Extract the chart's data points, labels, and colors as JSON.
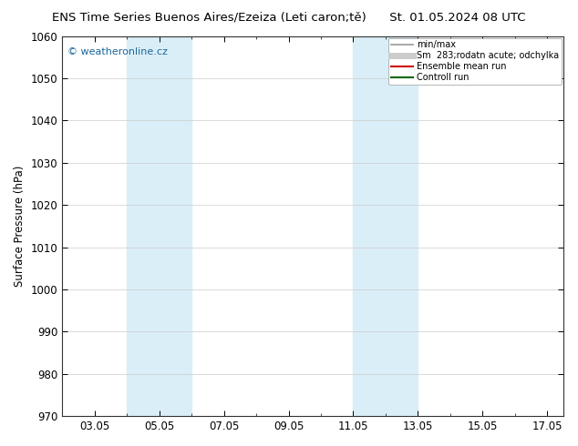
{
  "title_left": "ENS Time Series Buenos Aires/Ezeiza (Leti caron;tě)",
  "title_right": "St. 01.05.2024 08 UTC",
  "ylabel": "Surface Pressure (hPa)",
  "ylim": [
    970,
    1060
  ],
  "yticks": [
    970,
    980,
    990,
    1000,
    1010,
    1020,
    1030,
    1040,
    1050,
    1060
  ],
  "xtick_labels": [
    "03.05",
    "05.05",
    "07.05",
    "09.05",
    "11.05",
    "13.05",
    "15.05",
    "17.05"
  ],
  "shaded_bands": [
    {
      "x_start": 4.0,
      "x_end": 6.0,
      "color": "#daeef8"
    },
    {
      "x_start": 11.0,
      "x_end": 13.0,
      "color": "#daeef8"
    }
  ],
  "watermark_text": "© weatheronline.cz",
  "watermark_color": "#1a6699",
  "legend_entries": [
    {
      "label": "min/max",
      "color": "#999999",
      "lw": 1.2,
      "linestyle": "-"
    },
    {
      "label": "Sm  283;rodatn acute; odchylka",
      "color": "#cccccc",
      "lw": 5,
      "linestyle": "-"
    },
    {
      "label": "Ensemble mean run",
      "color": "#cc0000",
      "lw": 1.5,
      "linestyle": "-"
    },
    {
      "label": "Controll run",
      "color": "#006600",
      "lw": 1.5,
      "linestyle": "-"
    }
  ],
  "bg_color": "#ffffff",
  "grid_color": "#cccccc",
  "axis_label_fontsize": 8.5,
  "title_fontsize": 9.5,
  "x_min": 2.0,
  "x_max": 17.5
}
